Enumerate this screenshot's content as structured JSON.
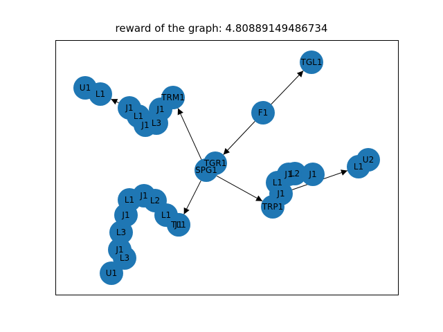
{
  "title": "reward of the graph: 4.80889149486734",
  "colors": {
    "node": "#1f77b4",
    "edge": "#000000",
    "frame": "#000000",
    "background": "#ffffff"
  },
  "nodes": [
    {
      "id": "u1a",
      "label": "U1"
    },
    {
      "id": "l1a",
      "label": "L1"
    },
    {
      "id": "j1a",
      "label": "J1"
    },
    {
      "id": "l1b",
      "label": "L1"
    },
    {
      "id": "j1b",
      "label": "J1"
    },
    {
      "id": "l3a",
      "label": "L3"
    },
    {
      "id": "j1c",
      "label": "J1"
    },
    {
      "id": "trm1",
      "label": "TRM1"
    },
    {
      "id": "tgl1",
      "label": "TGL1"
    },
    {
      "id": "f1",
      "label": "F1"
    },
    {
      "id": "tgr1",
      "label": "TGR1"
    },
    {
      "id": "spg1",
      "label": "SPG1"
    },
    {
      "id": "j1d",
      "label": "J1"
    },
    {
      "id": "l2a",
      "label": "L2"
    },
    {
      "id": "j1e",
      "label": "J1"
    },
    {
      "id": "l1c",
      "label": "L1"
    },
    {
      "id": "j1f",
      "label": "J1"
    },
    {
      "id": "trp1",
      "label": "TRP1"
    },
    {
      "id": "l1d",
      "label": "L1"
    },
    {
      "id": "u2",
      "label": "U2"
    },
    {
      "id": "l1e",
      "label": "L1"
    },
    {
      "id": "j1g",
      "label": "J1"
    },
    {
      "id": "l2b",
      "label": "L2"
    },
    {
      "id": "j1h",
      "label": "J1"
    },
    {
      "id": "l1f",
      "label": "L1"
    },
    {
      "id": "j1i",
      "label": "J1"
    },
    {
      "id": "tl1",
      "label": "TL1"
    },
    {
      "id": "l3b",
      "label": "L3"
    },
    {
      "id": "j1j",
      "label": "J1"
    },
    {
      "id": "l3c",
      "label": "L3"
    },
    {
      "id": "u1b",
      "label": "U1"
    }
  ],
  "edges": [
    {
      "from": "f1",
      "to": "tgl1"
    },
    {
      "from": "f1",
      "to": "tgr1"
    },
    {
      "from": "spg1",
      "to": "trm1"
    },
    {
      "from": "spg1",
      "to": "trp1"
    },
    {
      "from": "spg1",
      "to": "tl1"
    },
    {
      "from": "j1a",
      "to": "l1a"
    },
    {
      "from": "j1f",
      "to": "l1d"
    }
  ]
}
